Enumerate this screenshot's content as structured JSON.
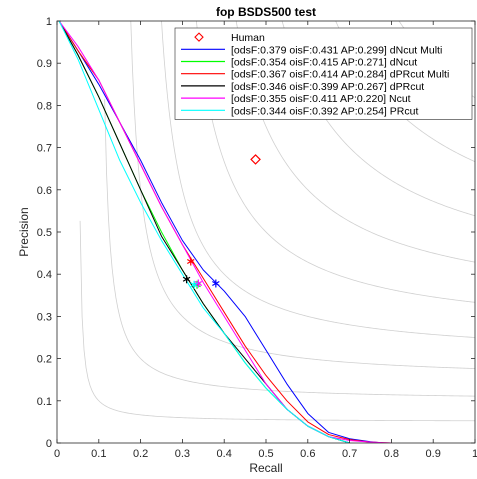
{
  "chart_data": {
    "type": "line",
    "title": "fop BSDS500 test",
    "xlabel": "Recall",
    "ylabel": "Precision",
    "xlim": [
      0,
      1
    ],
    "ylim": [
      0,
      1
    ],
    "xticks": [
      "0",
      "0.1",
      "0.2",
      "0.3",
      "0.4",
      "0.5",
      "0.6",
      "0.7",
      "0.8",
      "0.9",
      "1"
    ],
    "yticks": [
      "0",
      "0.1",
      "0.2",
      "0.3",
      "0.4",
      "0.5",
      "0.6",
      "0.7",
      "0.8",
      "0.9",
      "1"
    ],
    "grid": false,
    "iso_f_contours": [
      0.1,
      0.2,
      0.3,
      0.4,
      0.5,
      0.6,
      0.7,
      0.8,
      0.9
    ],
    "legend_position": "top-right",
    "human": {
      "label": "Human",
      "x": 0.475,
      "y": 0.672,
      "color": "#ff0000",
      "marker": "diamond"
    },
    "series": [
      {
        "name": "[odsF:0.379 oisF:0.431 AP:0.299] dNcut Multi",
        "color": "#0000ff",
        "marker": {
          "x": 0.38,
          "y": 0.378
        },
        "x": [
          0.005,
          0.05,
          0.1,
          0.15,
          0.2,
          0.25,
          0.3,
          0.35,
          0.4,
          0.45,
          0.5,
          0.55,
          0.6,
          0.65,
          0.7,
          0.75,
          0.78
        ],
        "y": [
          1.0,
          0.93,
          0.85,
          0.76,
          0.67,
          0.57,
          0.48,
          0.41,
          0.36,
          0.3,
          0.22,
          0.14,
          0.07,
          0.025,
          0.01,
          0.003,
          0.0
        ]
      },
      {
        "name": "[odsF:0.354 oisF:0.415 AP:0.271] dNcut",
        "color": "#00ff00",
        "marker": {
          "x": 0.335,
          "y": 0.375
        },
        "x": [
          0.005,
          0.05,
          0.1,
          0.15,
          0.2,
          0.25,
          0.3,
          0.35,
          0.4,
          0.45,
          0.5,
          0.55,
          0.6,
          0.65,
          0.7
        ],
        "y": [
          1.0,
          0.92,
          0.82,
          0.71,
          0.6,
          0.5,
          0.41,
          0.33,
          0.26,
          0.19,
          0.13,
          0.08,
          0.04,
          0.015,
          0.0
        ]
      },
      {
        "name": "[odsF:0.367 oisF:0.414 AP:0.284] dPRcut Multi",
        "color": "#ff0000",
        "marker": {
          "x": 0.32,
          "y": 0.43
        },
        "x": [
          0.005,
          0.05,
          0.1,
          0.15,
          0.2,
          0.25,
          0.3,
          0.35,
          0.4,
          0.45,
          0.5,
          0.55,
          0.6,
          0.65,
          0.7,
          0.75,
          0.8
        ],
        "y": [
          1.0,
          0.93,
          0.86,
          0.76,
          0.66,
          0.56,
          0.47,
          0.39,
          0.31,
          0.23,
          0.16,
          0.1,
          0.05,
          0.02,
          0.008,
          0.002,
          0.0
        ]
      },
      {
        "name": "[odsF:0.346 oisF:0.399 AP:0.267] dPRcut",
        "color": "#000000",
        "marker": {
          "x": 0.31,
          "y": 0.388
        },
        "x": [
          0.005,
          0.05,
          0.1,
          0.15,
          0.2,
          0.25,
          0.3,
          0.35,
          0.4,
          0.45,
          0.5,
          0.55,
          0.6,
          0.65,
          0.7
        ],
        "y": [
          1.0,
          0.92,
          0.82,
          0.71,
          0.6,
          0.49,
          0.41,
          0.33,
          0.26,
          0.2,
          0.14,
          0.08,
          0.04,
          0.015,
          0.0
        ]
      },
      {
        "name": "[odsF:0.355 oisF:0.411 AP:0.220] Ncut",
        "color": "#ff00ff",
        "marker": {
          "x": 0.338,
          "y": 0.378
        },
        "x": [
          0.005,
          0.05,
          0.1,
          0.15,
          0.2,
          0.25,
          0.3,
          0.35,
          0.4,
          0.45,
          0.5,
          0.55,
          0.6,
          0.65,
          0.7,
          0.75,
          0.8
        ],
        "y": [
          1.0,
          0.94,
          0.86,
          0.76,
          0.66,
          0.56,
          0.47,
          0.38,
          0.3,
          0.22,
          0.14,
          0.08,
          0.04,
          0.015,
          0.006,
          0.002,
          0.0
        ]
      },
      {
        "name": "[odsF:0.344 oisF:0.392 AP:0.254] PRcut",
        "color": "#00ffff",
        "marker": {
          "x": 0.328,
          "y": 0.375
        },
        "x": [
          0.005,
          0.05,
          0.1,
          0.15,
          0.2,
          0.25,
          0.3,
          0.35,
          0.4,
          0.45,
          0.5,
          0.55,
          0.6,
          0.65,
          0.7
        ],
        "y": [
          1.0,
          0.91,
          0.79,
          0.67,
          0.57,
          0.48,
          0.4,
          0.32,
          0.26,
          0.19,
          0.13,
          0.08,
          0.04,
          0.015,
          0.0
        ]
      }
    ]
  }
}
